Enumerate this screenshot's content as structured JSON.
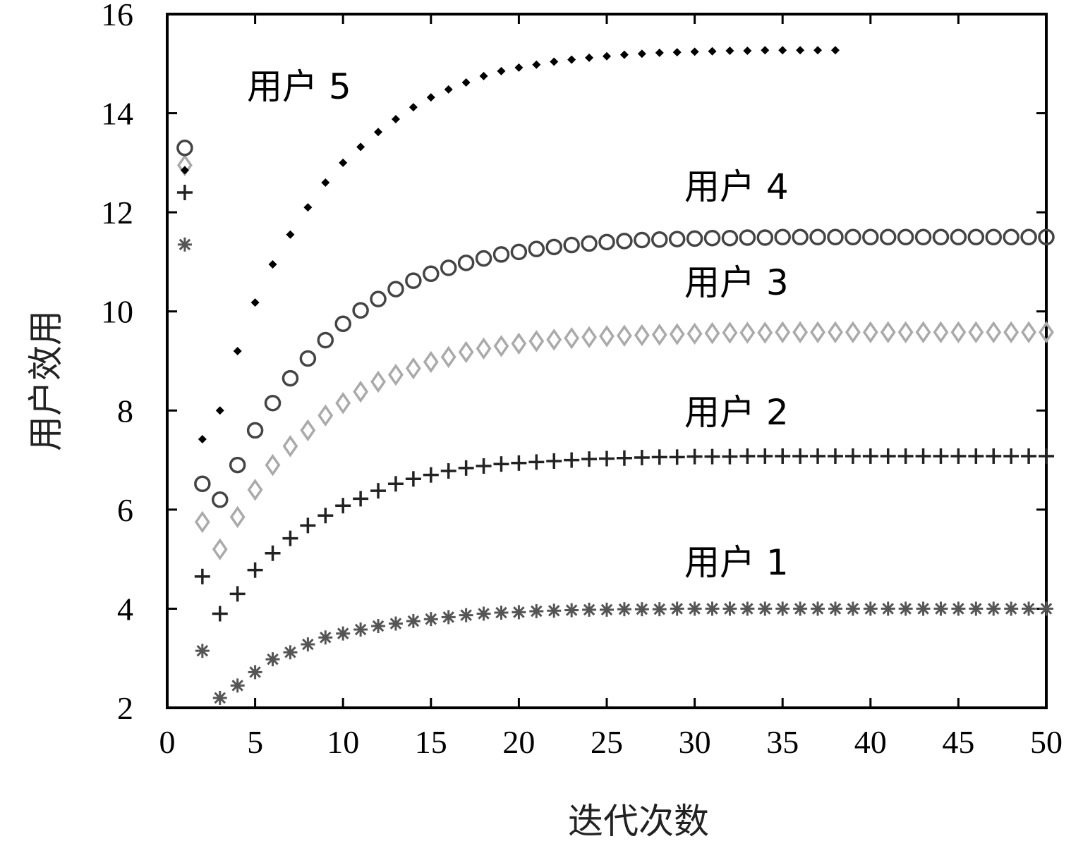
{
  "chart_data": {
    "type": "scatter",
    "title": "",
    "xlabel": "迭代次数",
    "ylabel": "用户效用",
    "xlim": [
      0,
      50
    ],
    "ylim": [
      2,
      16
    ],
    "xticks": [
      0,
      5,
      10,
      15,
      20,
      25,
      30,
      35,
      40,
      45,
      50
    ],
    "yticks": [
      2,
      4,
      6,
      8,
      10,
      12,
      14,
      16
    ],
    "xtick_labels": [
      "0",
      "5",
      "10",
      "15",
      "20",
      "25",
      "30",
      "35",
      "40",
      "45",
      "50"
    ],
    "ytick_labels": [
      "2",
      "4",
      "6",
      "8",
      "10",
      "12",
      "14",
      "16"
    ],
    "grid": false,
    "series": [
      {
        "name": "用户 1",
        "label": "用户 1",
        "marker": "asterisk",
        "color": "#555555",
        "x": [
          1,
          2,
          3,
          4,
          5,
          6,
          7,
          8,
          9,
          10,
          11,
          12,
          13,
          14,
          15,
          16,
          17,
          18,
          19,
          20,
          21,
          22,
          23,
          24,
          25,
          26,
          27,
          28,
          29,
          30,
          31,
          32,
          33,
          34,
          35,
          36,
          37,
          38,
          39,
          40,
          41,
          42,
          43,
          44,
          45,
          46,
          47,
          48,
          49,
          50
        ],
        "y": [
          11.35,
          3.15,
          2.2,
          2.45,
          2.72,
          2.98,
          3.12,
          3.28,
          3.42,
          3.5,
          3.58,
          3.65,
          3.7,
          3.75,
          3.79,
          3.83,
          3.87,
          3.9,
          3.92,
          3.93,
          3.95,
          3.96,
          3.97,
          3.98,
          3.98,
          3.99,
          3.99,
          3.99,
          4.0,
          4.0,
          4.0,
          4.0,
          4.0,
          4.0,
          4.0,
          4.0,
          4.0,
          4.0,
          4.0,
          4.0,
          4.0,
          4.0,
          4.0,
          4.0,
          4.0,
          4.0,
          4.0,
          4.0,
          4.0,
          4.0
        ]
      },
      {
        "name": "用户 2",
        "label": "用户 2",
        "marker": "plus",
        "color": "#222222",
        "x": [
          1,
          2,
          3,
          4,
          5,
          6,
          7,
          8,
          9,
          10,
          11,
          12,
          13,
          14,
          15,
          16,
          17,
          18,
          19,
          20,
          21,
          22,
          23,
          24,
          25,
          26,
          27,
          28,
          29,
          30,
          31,
          32,
          33,
          34,
          35,
          36,
          37,
          38,
          39,
          40,
          41,
          42,
          43,
          44,
          45,
          46,
          47,
          48,
          49,
          50
        ],
        "y": [
          12.4,
          4.65,
          3.9,
          4.3,
          4.78,
          5.12,
          5.42,
          5.68,
          5.88,
          6.08,
          6.22,
          6.38,
          6.52,
          6.62,
          6.7,
          6.78,
          6.84,
          6.88,
          6.92,
          6.94,
          6.96,
          6.98,
          7.0,
          7.02,
          7.03,
          7.04,
          7.05,
          7.06,
          7.06,
          7.07,
          7.07,
          7.07,
          7.08,
          7.08,
          7.08,
          7.08,
          7.08,
          7.08,
          7.08,
          7.08,
          7.08,
          7.08,
          7.08,
          7.08,
          7.08,
          7.08,
          7.08,
          7.08,
          7.08,
          7.08
        ]
      },
      {
        "name": "用户 3",
        "label": "用户 3",
        "marker": "diamond",
        "color": "#aaaaaa",
        "x": [
          1,
          2,
          3,
          4,
          5,
          6,
          7,
          8,
          9,
          10,
          11,
          12,
          13,
          14,
          15,
          16,
          17,
          18,
          19,
          20,
          21,
          22,
          23,
          24,
          25,
          26,
          27,
          28,
          29,
          30,
          31,
          32,
          33,
          34,
          35,
          36,
          37,
          38,
          39,
          40,
          41,
          42,
          43,
          44,
          45,
          46,
          47,
          48,
          49,
          50
        ],
        "y": [
          12.95,
          5.75,
          5.2,
          5.85,
          6.4,
          6.9,
          7.28,
          7.6,
          7.9,
          8.15,
          8.38,
          8.58,
          8.72,
          8.85,
          8.98,
          9.08,
          9.18,
          9.25,
          9.3,
          9.35,
          9.4,
          9.43,
          9.46,
          9.48,
          9.5,
          9.51,
          9.52,
          9.53,
          9.54,
          9.55,
          9.56,
          9.57,
          9.57,
          9.57,
          9.58,
          9.58,
          9.58,
          9.58,
          9.58,
          9.58,
          9.58,
          9.58,
          9.58,
          9.58,
          9.58,
          9.58,
          9.58,
          9.58,
          9.58,
          9.58
        ]
      },
      {
        "name": "用户 4",
        "label": "用户 4",
        "marker": "circle",
        "color": "#444444",
        "x": [
          1,
          2,
          3,
          4,
          5,
          6,
          7,
          8,
          9,
          10,
          11,
          12,
          13,
          14,
          15,
          16,
          17,
          18,
          19,
          20,
          21,
          22,
          23,
          24,
          25,
          26,
          27,
          28,
          29,
          30,
          31,
          32,
          33,
          34,
          35,
          36,
          37,
          38,
          39,
          40,
          41,
          42,
          43,
          44,
          45,
          46,
          47,
          48,
          49,
          50
        ],
        "y": [
          13.3,
          6.52,
          6.2,
          6.9,
          7.6,
          8.15,
          8.65,
          9.05,
          9.42,
          9.75,
          10.02,
          10.25,
          10.45,
          10.62,
          10.76,
          10.88,
          10.98,
          11.07,
          11.15,
          11.2,
          11.26,
          11.3,
          11.34,
          11.37,
          11.4,
          11.42,
          11.44,
          11.45,
          11.46,
          11.47,
          11.48,
          11.48,
          11.49,
          11.49,
          11.5,
          11.5,
          11.5,
          11.5,
          11.5,
          11.5,
          11.5,
          11.5,
          11.5,
          11.5,
          11.5,
          11.5,
          11.5,
          11.5,
          11.5,
          11.5
        ]
      },
      {
        "name": "用户 5",
        "label": "用户 5",
        "marker": "filled-diamond",
        "color": "#000000",
        "x": [
          1,
          2,
          3,
          4,
          5,
          6,
          7,
          8,
          9,
          10,
          11,
          12,
          13,
          14,
          15,
          16,
          17,
          18,
          19,
          20,
          21,
          22,
          23,
          24,
          25,
          26,
          27,
          28,
          29,
          30,
          31,
          32,
          33,
          34,
          35,
          36,
          37,
          38
        ],
        "y": [
          12.85,
          7.42,
          8.0,
          9.2,
          10.18,
          10.95,
          11.55,
          12.1,
          12.6,
          13.0,
          13.32,
          13.62,
          13.88,
          14.12,
          14.32,
          14.48,
          14.62,
          14.75,
          14.85,
          14.92,
          14.98,
          15.04,
          15.08,
          15.12,
          15.15,
          15.18,
          15.2,
          15.22,
          15.23,
          15.24,
          15.25,
          15.26,
          15.26,
          15.27,
          15.27,
          15.27,
          15.27,
          15.27
        ]
      }
    ]
  }
}
